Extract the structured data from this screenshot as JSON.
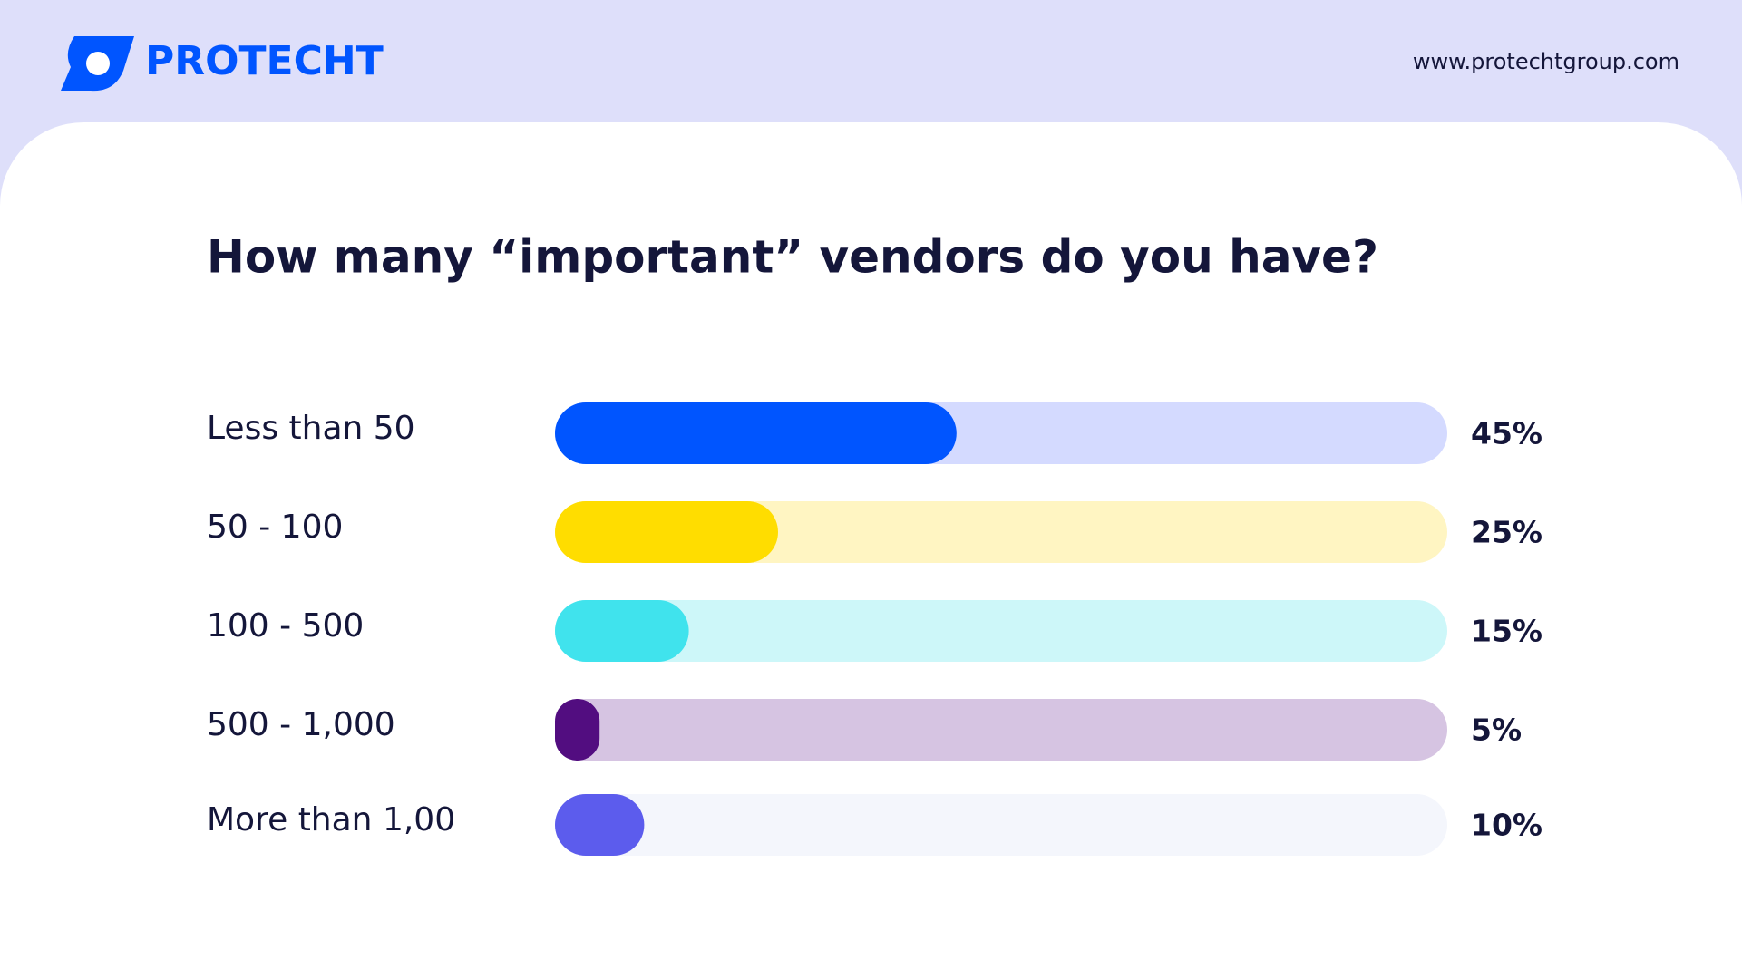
{
  "header": {
    "brand": "PROTECHT",
    "url": "www.protechtgroup.com"
  },
  "chart_data": {
    "type": "bar",
    "orientation": "horizontal",
    "title": "How many “important” vendors do you have?",
    "categories": [
      "Less than 50",
      "50 - 100",
      "100 - 500",
      "500 - 1,000",
      "More than 1,00"
    ],
    "values": [
      45,
      25,
      15,
      5,
      10
    ],
    "value_labels": [
      "45%",
      "25%",
      "15%",
      "5%",
      "10%"
    ],
    "colors": [
      "#0055ff",
      "#ffdd00",
      "#40e3ed",
      "#520d80",
      "#5c5ced"
    ],
    "track_colors": [
      "#d4daff",
      "#fff5c2",
      "#cdf7f9",
      "#d6c4e2",
      "#f4f6fc"
    ],
    "xlim": [
      0,
      100
    ]
  }
}
